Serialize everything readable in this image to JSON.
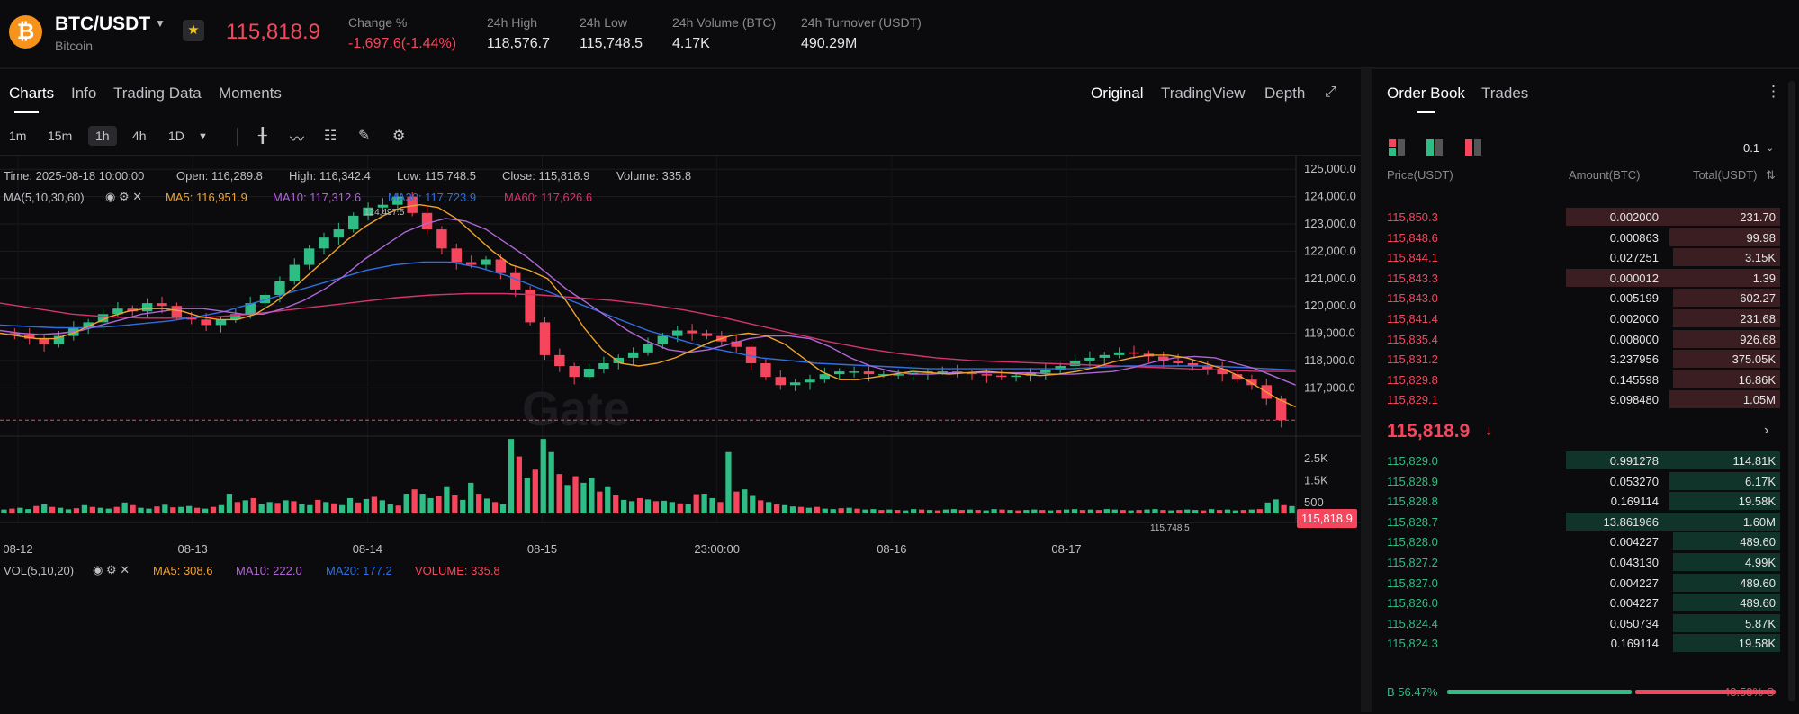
{
  "header": {
    "logo_glyph": "₿",
    "symbol": "BTC/USDT",
    "name": "Bitcoin",
    "last_price": "115,818.9",
    "stats": [
      {
        "label": "Change %",
        "value": "-1,697.6(-1.44%)",
        "color": "red"
      },
      {
        "label": "24h High",
        "value": "118,576.7"
      },
      {
        "label": "24h Low",
        "value": "115,748.5"
      },
      {
        "label": "24h Volume (BTC)",
        "value": "4.17K"
      },
      {
        "label": "24h Turnover (USDT)",
        "value": "490.29M"
      }
    ]
  },
  "chart_tabs": [
    "Charts",
    "Info",
    "Trading Data",
    "Moments"
  ],
  "view_tabs": [
    "Original",
    "TradingView",
    "Depth"
  ],
  "intervals": [
    "1m",
    "15m",
    "1h",
    "4h",
    "1D"
  ],
  "selected_interval": "1h",
  "info_line": {
    "time": "Time: 2025-08-18 10:00:00",
    "open": "Open: 116,289.8",
    "high": "High: 116,342.4",
    "low": "Low: 115,748.5",
    "close": "Close: 115,818.9",
    "volume": "Volume: 335.8"
  },
  "ma_line": {
    "label": "MA(5,10,30,60)",
    "ma5": "MA5: 116,951.9",
    "ma10": "MA10: 117,312.6",
    "ma30": "MA30: 117,723.9",
    "ma60": "MA60: 117,626.6"
  },
  "vol_line": {
    "label": "VOL(5,10,20)",
    "ma5": "MA5: 308.6",
    "ma10": "MA10: 222.0",
    "ma20": "MA20: 177.2",
    "volume": "VOLUME: 335.8"
  },
  "colors": {
    "up": "#2ebd85",
    "down": "#f6465d",
    "ma5": "#f0a32a",
    "ma10": "#b066d6",
    "ma30": "#2f6fe0",
    "ma60": "#d6336c"
  },
  "chart_data": {
    "type": "candlestick",
    "y_ticks": [
      "125,000.0",
      "124,000.0",
      "123,000.0",
      "122,000.0",
      "121,000.0",
      "120,000.0",
      "119,000.0",
      "118,000.0",
      "117,000.0"
    ],
    "x_ticks": [
      "08-12",
      "08-13",
      "08-14",
      "08-15",
      "23:00:00",
      "08-16",
      "08-17"
    ],
    "ylim": [
      115300,
      125500
    ],
    "high_marker": "124,497.5",
    "low_marker": "115,748.5",
    "price_tag": "115,818.9",
    "close_path": [
      119000,
      118950,
      118800,
      118600,
      118900,
      119200,
      119400,
      119700,
      119900,
      119800,
      120100,
      120000,
      119600,
      119500,
      119300,
      119500,
      119700,
      120100,
      120400,
      120900,
      121500,
      122100,
      122500,
      122800,
      123300,
      123600,
      123700,
      124000,
      123400,
      122800,
      122100,
      121600,
      121500,
      121700,
      121200,
      120600,
      119400,
      118200,
      117800,
      117400,
      117700,
      117900,
      118100,
      118300,
      118600,
      118900,
      119100,
      119000,
      118900,
      118700,
      118500,
      117900,
      117400,
      117100,
      117200,
      117300,
      117500,
      117600,
      117600,
      117500,
      117500,
      117500,
      117550,
      117600,
      117600,
      117550,
      117500,
      117450,
      117400,
      117450,
      117550,
      117650,
      117800,
      118000,
      118100,
      118200,
      118300,
      118250,
      118150,
      118000,
      117900,
      117800,
      117700,
      117500,
      117300,
      117100,
      116600,
      115818.9
    ],
    "ma5": [
      119000,
      118900,
      118800,
      118800,
      119000,
      119300,
      119600,
      119800,
      119900,
      119900,
      119800,
      119600,
      119500,
      119500,
      119700,
      120100,
      120600,
      121200,
      121800,
      122400,
      122900,
      123300,
      123600,
      123700,
      123600,
      123200,
      122600,
      122000,
      121500,
      121300,
      121000,
      120200,
      119200,
      118400,
      117900,
      117800,
      117900,
      118100,
      118400,
      118700,
      118900,
      119000,
      118900,
      118600,
      118100,
      117600,
      117300,
      117300,
      117400,
      117500,
      117600,
      117550,
      117500,
      117550,
      117600,
      117550,
      117500,
      117450,
      117500,
      117600,
      117750,
      117950,
      118100,
      118200,
      118200,
      118100,
      117900,
      117700,
      117400,
      117000,
      116600,
      116300
    ],
    "ma10": [
      119100,
      119000,
      118950,
      119000,
      119100,
      119300,
      119500,
      119700,
      119800,
      119900,
      119900,
      119800,
      119700,
      119700,
      119900,
      120200,
      120600,
      121100,
      121700,
      122200,
      122700,
      123000,
      123200,
      123100,
      122800,
      122300,
      121800,
      121200,
      120600,
      120100,
      119600,
      119100,
      118700,
      118400,
      118300,
      118400,
      118600,
      118800,
      118900,
      118900,
      118800,
      118500,
      118100,
      117800,
      117600,
      117500,
      117500,
      117550,
      117550,
      117550,
      117550,
      117550,
      117500,
      117500,
      117550,
      117600,
      117750,
      117950,
      118100,
      118150,
      118100,
      117900,
      117700,
      117400,
      117100
    ],
    "ma30": [
      119300,
      119250,
      119200,
      119200,
      119250,
      119350,
      119450,
      119600,
      119800,
      120100,
      120400,
      120700,
      121000,
      121300,
      121500,
      121600,
      121600,
      121400,
      121100,
      120700,
      120300,
      119900,
      119500,
      119100,
      118800,
      118500,
      118300,
      118100,
      118000,
      117900,
      117850,
      117800,
      117750,
      117700,
      117700,
      117700,
      117700,
      117700,
      117700,
      117750,
      117800,
      117800,
      117800,
      117800,
      117750,
      117700,
      117650
    ],
    "ma60": [
      120100,
      119900,
      119700,
      119600,
      119550,
      119550,
      119600,
      119700,
      119850,
      120000,
      120150,
      120300,
      120400,
      120450,
      120450,
      120400,
      120300,
      120200,
      120050,
      119850,
      119600,
      119300,
      119000,
      118700,
      118450,
      118250,
      118100,
      118000,
      117950,
      117900,
      117850,
      117800,
      117750,
      117700,
      117650,
      117600,
      117600
    ],
    "volume_ticks": [
      "2.5K",
      "1.5K",
      "500"
    ],
    "volume_max": 3200,
    "volumes": [
      180,
      220,
      260,
      200,
      340,
      420,
      300,
      260,
      190,
      240,
      380,
      300,
      260,
      220,
      300,
      500,
      380,
      260,
      220,
      320,
      400,
      280,
      300,
      340,
      260,
      220,
      300,
      380,
      900,
      520,
      600,
      700,
      420,
      520,
      480,
      600,
      560,
      420,
      380,
      620,
      520,
      460,
      380,
      700,
      500,
      660,
      760,
      600,
      420,
      360,
      900,
      1100,
      900,
      700,
      780,
      1200,
      820,
      620,
      1400,
      900,
      680,
      520,
      420,
      3400,
      2600,
      1600,
      2000,
      3400,
      2800,
      1800,
      1300,
      1700,
      1400,
      1600,
      1000,
      1200,
      820,
      620,
      560,
      700,
      640,
      560,
      580,
      520,
      460,
      420,
      880,
      900,
      700,
      520,
      2800,
      1000,
      1100,
      800,
      600,
      520,
      420,
      380,
      320,
      300,
      260,
      300,
      220,
      200,
      240,
      260,
      220,
      180,
      200,
      160,
      180,
      160,
      140,
      200,
      180,
      160,
      140,
      180,
      200,
      160,
      180,
      160,
      140,
      200,
      180,
      160,
      140,
      160,
      180,
      160,
      140,
      160,
      180,
      200,
      160,
      180,
      160,
      200,
      180,
      160,
      140,
      160,
      180,
      200,
      160,
      140,
      160,
      180,
      160,
      140,
      200,
      160,
      180,
      140,
      160,
      180,
      200,
      500,
      640,
      380,
      335.8
    ]
  },
  "orderbook": {
    "tabs": [
      "Order Book",
      "Trades"
    ],
    "precision": "0.1",
    "headers": {
      "price": "Price(USDT)",
      "amount": "Amount(BTC)",
      "total": "Total(USDT)"
    },
    "asks": [
      {
        "price": "115,850.3",
        "amount": "0.002000",
        "total": "231.70",
        "depth": 0.55
      },
      {
        "price": "115,848.6",
        "amount": "0.000863",
        "total": "99.98",
        "depth": 0.29
      },
      {
        "price": "115,844.1",
        "amount": "0.027251",
        "total": "3.15K",
        "depth": 0.28
      },
      {
        "price": "115,843.3",
        "amount": "0.000012",
        "total": "1.39",
        "depth": 0.55
      },
      {
        "price": "115,843.0",
        "amount": "0.005199",
        "total": "602.27",
        "depth": 0.28
      },
      {
        "price": "115,841.4",
        "amount": "0.002000",
        "total": "231.68",
        "depth": 0.28
      },
      {
        "price": "115,835.4",
        "amount": "0.008000",
        "total": "926.68",
        "depth": 0.28
      },
      {
        "price": "115,831.2",
        "amount": "3.237956",
        "total": "375.05K",
        "depth": 0.28
      },
      {
        "price": "115,829.8",
        "amount": "0.145598",
        "total": "16.86K",
        "depth": 0.28
      },
      {
        "price": "115,829.1",
        "amount": "9.098480",
        "total": "1.05M",
        "depth": 0.29
      }
    ],
    "mid_price": "115,818.9",
    "bids": [
      {
        "price": "115,829.0",
        "amount": "0.991278",
        "total": "114.81K",
        "depth": 0.55
      },
      {
        "price": "115,828.9",
        "amount": "0.053270",
        "total": "6.17K",
        "depth": 0.29
      },
      {
        "price": "115,828.8",
        "amount": "0.169114",
        "total": "19.58K",
        "depth": 0.29
      },
      {
        "price": "115,828.7",
        "amount": "13.861966",
        "total": "1.60M",
        "depth": 0.55
      },
      {
        "price": "115,828.0",
        "amount": "0.004227",
        "total": "489.60",
        "depth": 0.28
      },
      {
        "price": "115,827.2",
        "amount": "0.043130",
        "total": "4.99K",
        "depth": 0.28
      },
      {
        "price": "115,827.0",
        "amount": "0.004227",
        "total": "489.60",
        "depth": 0.28
      },
      {
        "price": "115,826.0",
        "amount": "0.004227",
        "total": "489.60",
        "depth": 0.28
      },
      {
        "price": "115,824.4",
        "amount": "0.050734",
        "total": "5.87K",
        "depth": 0.28
      },
      {
        "price": "115,824.3",
        "amount": "0.169114",
        "total": "19.58K",
        "depth": 0.28
      }
    ],
    "buy_ratio_label": "B 56.47%",
    "sell_ratio_label": "43.53% S",
    "buy_ratio": 0.5647
  }
}
